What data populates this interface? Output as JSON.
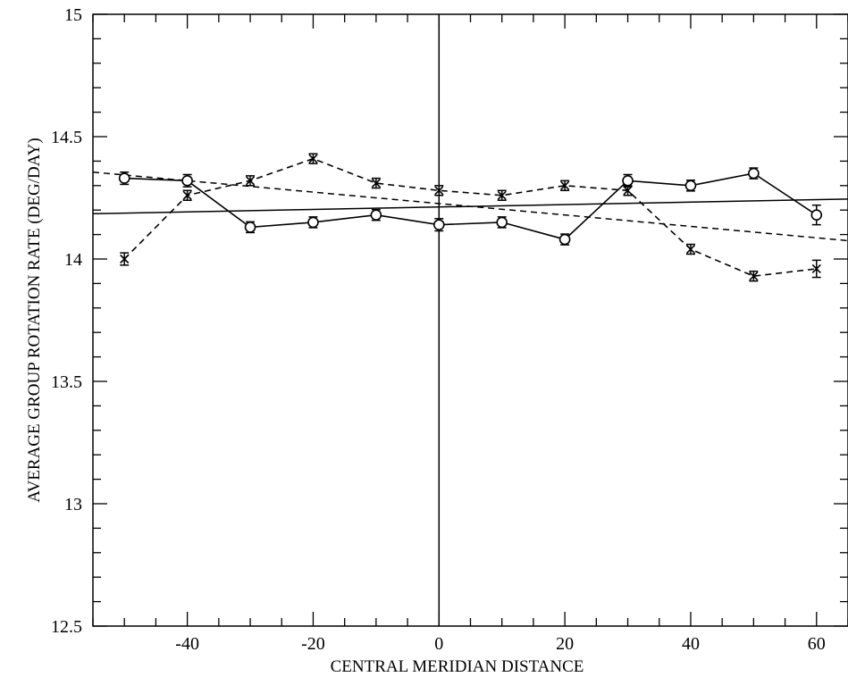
{
  "chart_data": {
    "type": "line",
    "title": "",
    "xlabel": "CENTRAL MERIDIAN DISTANCE",
    "ylabel": "AVERAGE GROUP ROTATION RATE (DEG/DAY)",
    "xlim": [
      -55,
      65
    ],
    "ylim": [
      12.5,
      15
    ],
    "x_ticks": [
      -40,
      -20,
      0,
      20,
      40,
      60
    ],
    "x_tick_labels": [
      "-40",
      "-20",
      "0",
      "20",
      "40",
      "60"
    ],
    "y_ticks": [
      12.5,
      13,
      13.5,
      14,
      14.5,
      15
    ],
    "y_tick_labels": [
      "12.5",
      "13",
      "13.5",
      "14",
      "14.5",
      "15"
    ],
    "grid": false,
    "reference_line_x": 0,
    "series": [
      {
        "marker": "circle",
        "line_style": "solid",
        "x": [
          -50,
          -40,
          -30,
          -20,
          -10,
          0,
          10,
          20,
          30,
          40,
          50,
          60
        ],
        "y": [
          14.33,
          14.32,
          14.13,
          14.15,
          14.18,
          14.14,
          14.15,
          14.08,
          14.32,
          14.3,
          14.35,
          14.18
        ],
        "err": [
          0.025,
          0.025,
          0.022,
          0.022,
          0.022,
          0.025,
          0.022,
          0.022,
          0.025,
          0.022,
          0.022,
          0.04
        ]
      },
      {
        "marker": "x",
        "line_style": "dashed",
        "x": [
          -50,
          -40,
          -30,
          -20,
          -10,
          0,
          10,
          20,
          30,
          40,
          50,
          60
        ],
        "y": [
          14.0,
          14.26,
          14.32,
          14.41,
          14.31,
          14.28,
          14.26,
          14.3,
          14.28,
          14.04,
          13.93,
          13.96
        ],
        "err": [
          0.025,
          0.02,
          0.02,
          0.02,
          0.02,
          0.02,
          0.02,
          0.02,
          0.02,
          0.02,
          0.02,
          0.035
        ]
      }
    ],
    "fit_lines": [
      {
        "line_style": "solid",
        "x": [
          -55,
          65
        ],
        "y": [
          14.185,
          14.245
        ]
      },
      {
        "line_style": "dashed",
        "x": [
          -55,
          65
        ],
        "y": [
          14.355,
          14.075
        ]
      }
    ]
  }
}
